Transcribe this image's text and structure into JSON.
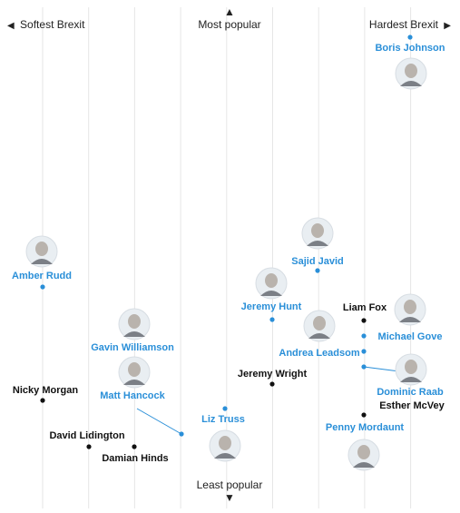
{
  "chart_data": {
    "type": "scatter",
    "title": "",
    "xlabel": "",
    "ylabel": "",
    "x_axis": {
      "left_label": "Softest Brexit",
      "right_label": "Hardest Brexit",
      "left_arrow": "◀",
      "right_arrow": "▶"
    },
    "y_axis": {
      "top_label": "Most popular",
      "bottom_label": "Least popular",
      "up_arrow": "▲",
      "down_arrow": "▼"
    },
    "xlim": [
      0,
      8
    ],
    "ylim": [
      0,
      10
    ],
    "grid": "vertical",
    "colors": {
      "with_photo": "#2a8fd8",
      "without_photo": "#111111",
      "grid": "#e6e6e6"
    },
    "points": [
      {
        "name": "Boris Johnson",
        "x": 7.0,
        "y": 9.6,
        "photo": true
      },
      {
        "name": "Sajid Javid",
        "x": 5.0,
        "y": 4.8,
        "photo": true
      },
      {
        "name": "Amber Rudd",
        "x": 0.0,
        "y": 4.6,
        "photo": true
      },
      {
        "name": "Jeremy Hunt",
        "x": 4.0,
        "y": 3.8,
        "photo": true
      },
      {
        "name": "Liam Fox",
        "x": 6.0,
        "y": 3.8,
        "photo": false
      },
      {
        "name": "Michael Gove",
        "x": 6.0,
        "y": 3.5,
        "photo": true
      },
      {
        "name": "Andrea Leadsom",
        "x": 6.0,
        "y": 3.3,
        "photo": true
      },
      {
        "name": "Dominic Raab",
        "x": 6.0,
        "y": 2.9,
        "photo": true
      },
      {
        "name": "Jeremy Wright",
        "x": 4.0,
        "y": 2.6,
        "photo": false
      },
      {
        "name": "Nicky Morgan",
        "x": 0.0,
        "y": 2.3,
        "photo": false
      },
      {
        "name": "Liz Truss",
        "x": 3.0,
        "y": 2.1,
        "photo": true
      },
      {
        "name": "Esther McVey",
        "x": 6.0,
        "y": 2.0,
        "photo": false
      },
      {
        "name": "Gavin Williamson",
        "x": 2.0,
        "y": 1.7,
        "photo": true
      },
      {
        "name": "Matt Hancock",
        "x": 2.0,
        "y": 1.7,
        "photo": true
      },
      {
        "name": "David Lidington",
        "x": 1.0,
        "y": 1.4,
        "photo": false
      },
      {
        "name": "Damian Hinds",
        "x": 2.0,
        "y": 1.4,
        "photo": false
      },
      {
        "name": "Penny Mordaunt",
        "x": 6.0,
        "y": 2.05,
        "photo": true
      }
    ]
  }
}
